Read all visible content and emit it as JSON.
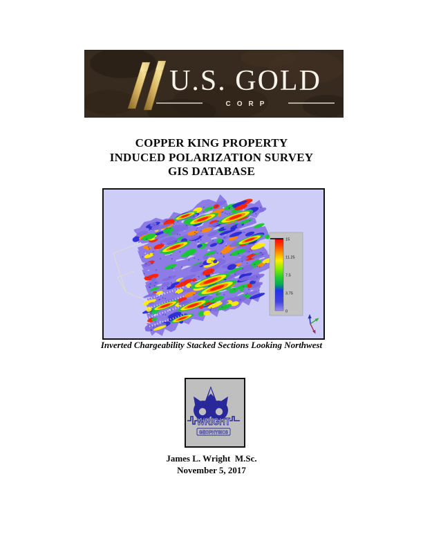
{
  "us_gold_logo": {
    "name": "U.S. GOLD",
    "corp": "CORP",
    "bg_color": "#372a1e",
    "gold_color": "#d9b563",
    "text_color": "#f7f3e8"
  },
  "title": {
    "line1": "COPPER KING PROPERTY",
    "line2": "INDUCED POLARIZATION SURVEY",
    "line3": "GIS DATABASE"
  },
  "figure": {
    "caption": "Inverted Chargeability Stacked Sections Looking Northwest"
  },
  "chart_data": {
    "type": "heatmap",
    "title": "Inverted Chargeability Stacked Sections Looking Northwest",
    "subtype": "3d-stacked-pseudocolor-sections",
    "background": "#cdcdf8",
    "legend_position": "right",
    "colorbar": {
      "tick_labels": [
        "15",
        "11.25",
        "7.5",
        "3.75",
        "0"
      ],
      "range": [
        0,
        15
      ],
      "gradient_top_to_bottom": [
        "#ff0000",
        "#ff8800",
        "#ffee00",
        "#44dd22",
        "#00aa55",
        "#2222ee",
        "#9a8cf2"
      ],
      "panel_color": "#c2c2c2"
    },
    "section_palette": {
      "base": "#8d7ce6",
      "low": "#2b2bd4",
      "mid": "#18c832",
      "high": "#ffee00",
      "higher": "#ff8a00",
      "highest": "#ff2200"
    }
  },
  "wright_logo": {
    "name": "WRIGHT",
    "subtitle": "GEOPHYSICS",
    "color": "#28289a",
    "bg": "#bfbfbf"
  },
  "footer": {
    "author": "James L. Wright  M.Sc.",
    "date": "November 5, 2017"
  }
}
